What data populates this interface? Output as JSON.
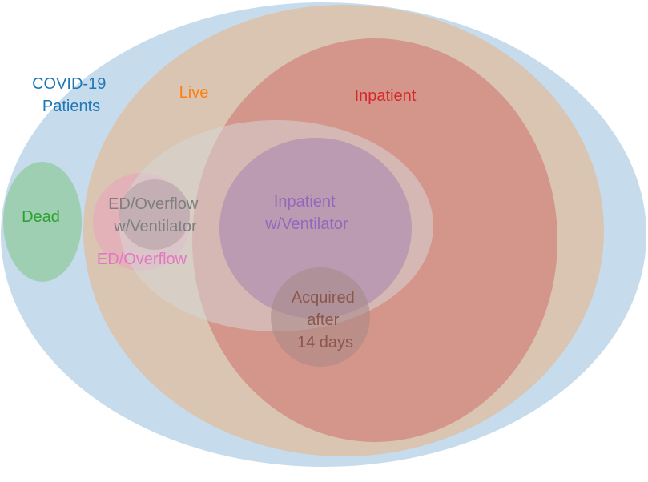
{
  "diagram": {
    "type": "euler",
    "sets": [
      {
        "id": "covid",
        "lines": [
          "COVID-19",
          "Patients"
        ],
        "fill": "#c6dbeb",
        "label_color": "#1f77b4"
      },
      {
        "id": "live",
        "lines": [
          "Live"
        ],
        "fill": "#d9c5b2",
        "label_color": "#ff7f0e"
      },
      {
        "id": "inpatient",
        "lines": [
          "Inpatient"
        ],
        "fill": "#d4958a",
        "label_color": "#d62728"
      },
      {
        "id": "dead",
        "lines": [
          "Dead"
        ],
        "fill": "#9ecfb3",
        "label_color": "#2ca02c"
      },
      {
        "id": "ed-overflow",
        "lines": [
          "ED/Overflow"
        ],
        "fill": "#e3aeb8",
        "label_color": "#e377c2"
      },
      {
        "id": "ventilator-all",
        "lines": [],
        "fill": "#d6d6d6",
        "label_color": ""
      },
      {
        "id": "inpatient-ventilator",
        "lines": [
          "Inpatient",
          "w/Ventilator"
        ],
        "fill": "#ae8fb0",
        "label_color": "#9467bd"
      },
      {
        "id": "ed-overflow-ventilator",
        "lines": [
          "ED/Overflow",
          "w/Ventilator"
        ],
        "fill": "#b4a0a8",
        "label_color": "#7f7f7f"
      },
      {
        "id": "acquired",
        "lines": [
          "Acquired",
          "after",
          "14 days"
        ],
        "fill": "#a58886",
        "label_color": "#8c564b"
      }
    ]
  }
}
